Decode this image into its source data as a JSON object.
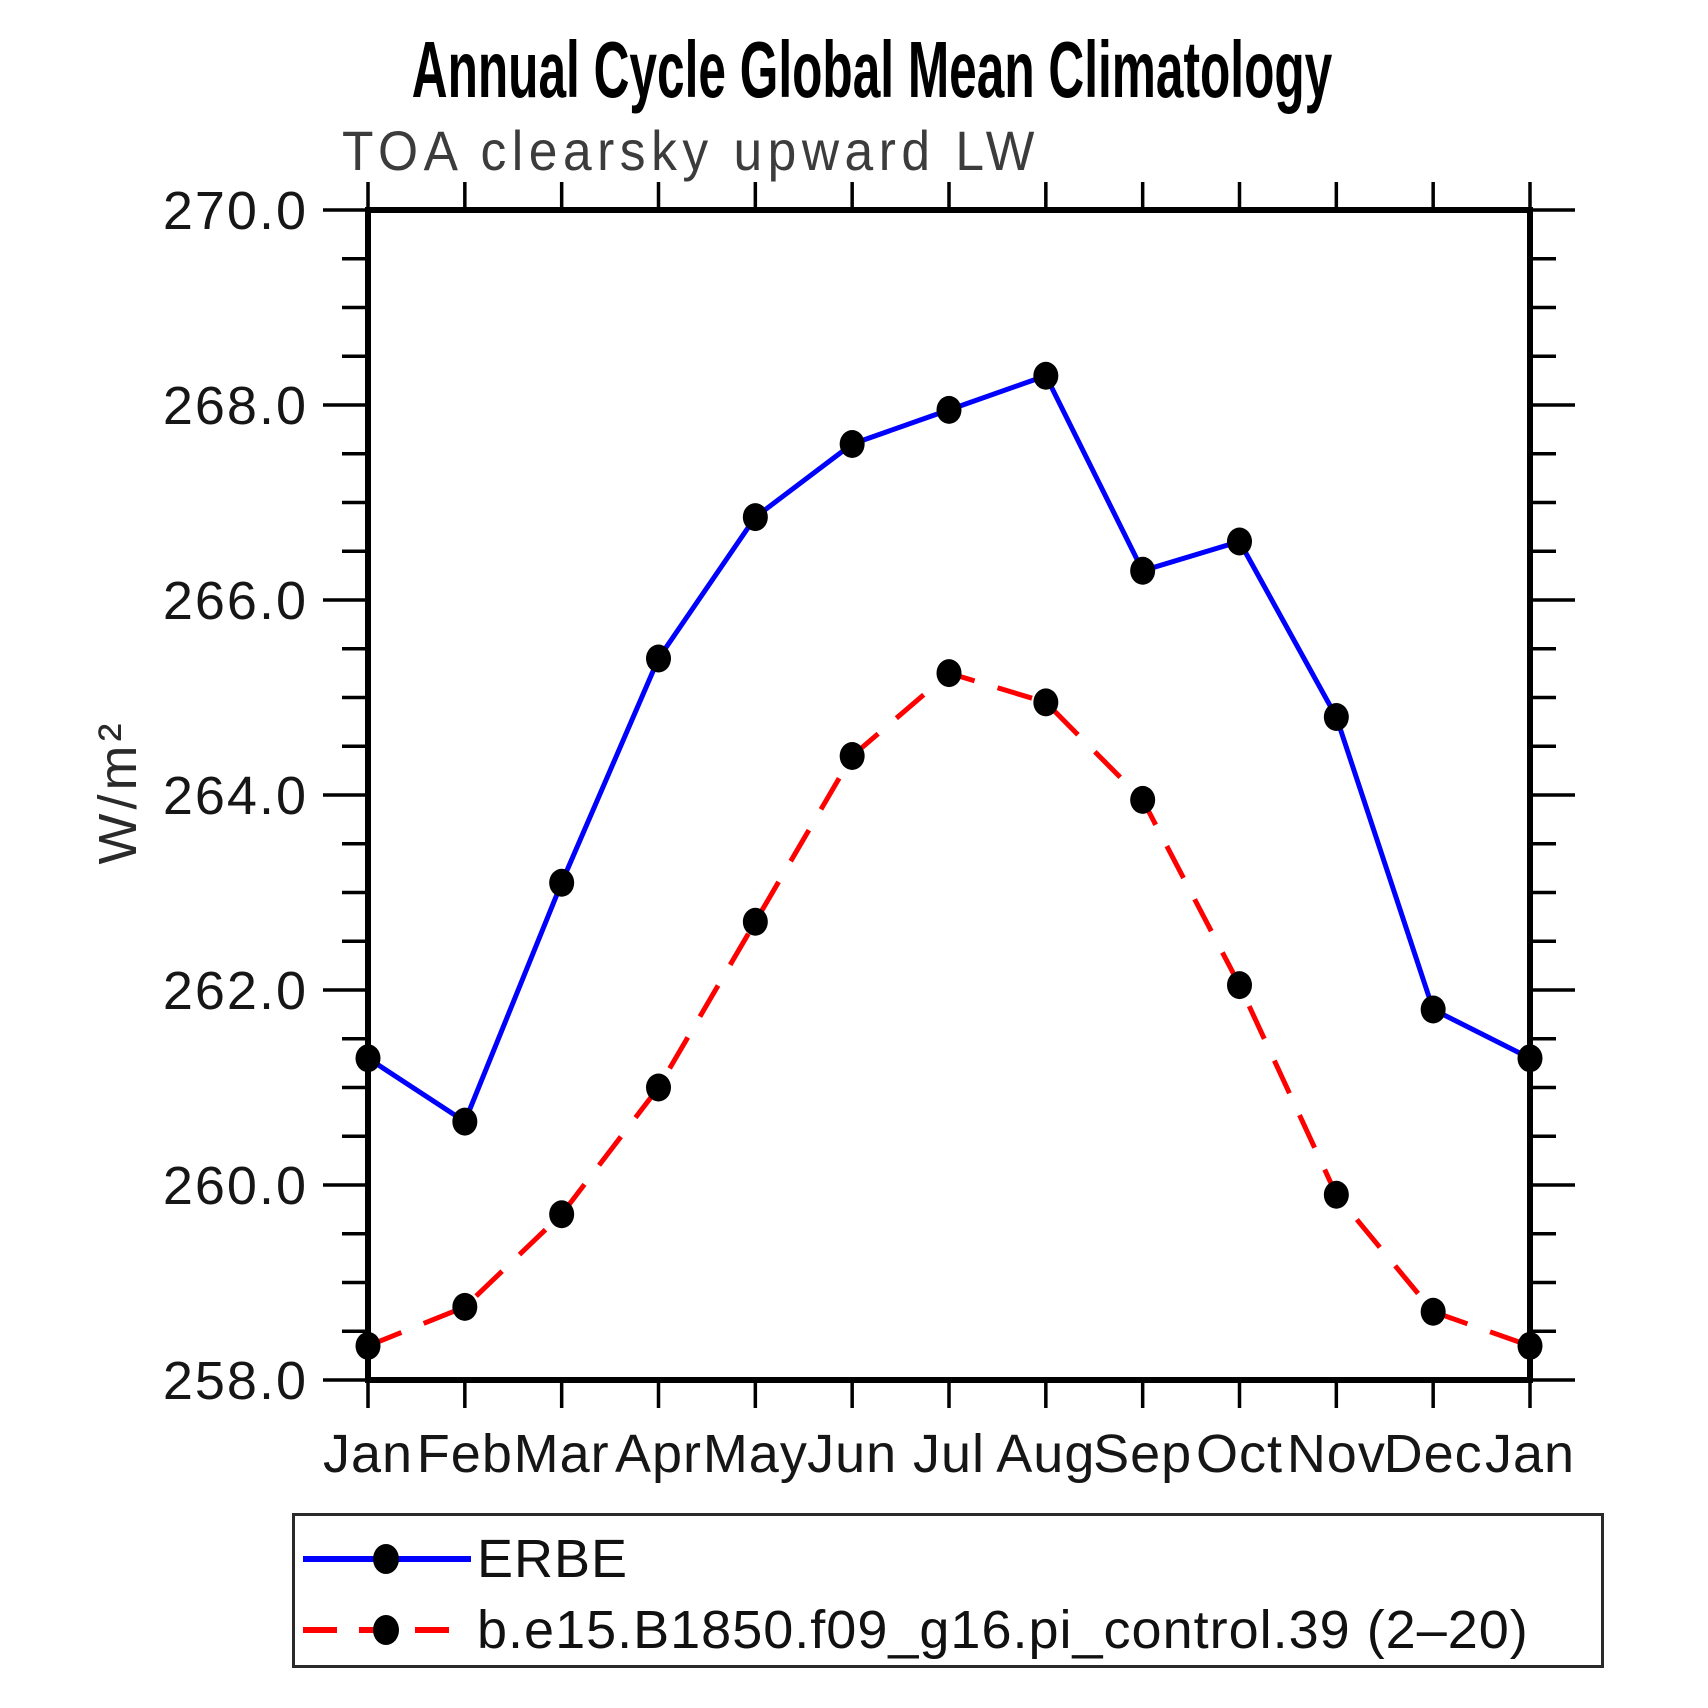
{
  "chart_data": {
    "type": "line",
    "title": "Annual Cycle Global Mean Climatology",
    "subtitle": "TOA clearsky upward LW",
    "ylabel": "W/m²",
    "xlabel": "",
    "categories": [
      "Jan",
      "Feb",
      "Mar",
      "Apr",
      "May",
      "Jun",
      "Jul",
      "Aug",
      "Sep",
      "Oct",
      "Nov",
      "Dec",
      "Jan"
    ],
    "ylim": [
      258.0,
      270.0
    ],
    "ytick_major_interval": 2.0,
    "ytick_minor_interval": 0.5,
    "ytick_labels": [
      "270.0",
      "268.0",
      "266.0",
      "264.0",
      "262.0",
      "260.0",
      "258.0"
    ],
    "grid": false,
    "legend_position": "bottom",
    "marker_color": "#000000",
    "axis_color": "#000000",
    "series": [
      {
        "name": "ERBE",
        "color": "#0000ff",
        "style": "solid",
        "marker": "filled-black-dot",
        "values": [
          261.3,
          260.65,
          263.1,
          265.4,
          266.85,
          267.6,
          267.95,
          268.3,
          266.3,
          266.6,
          264.8,
          261.8,
          261.3
        ]
      },
      {
        "name": "b.e15.B1850.f09_g16.pi_control.39 (2–20)",
        "color": "#ff0000",
        "style": "dashed",
        "marker": "filled-black-dot",
        "values": [
          258.35,
          258.75,
          259.7,
          261.0,
          262.7,
          264.4,
          265.25,
          264.95,
          263.95,
          262.05,
          259.9,
          258.7,
          258.35
        ]
      }
    ]
  }
}
